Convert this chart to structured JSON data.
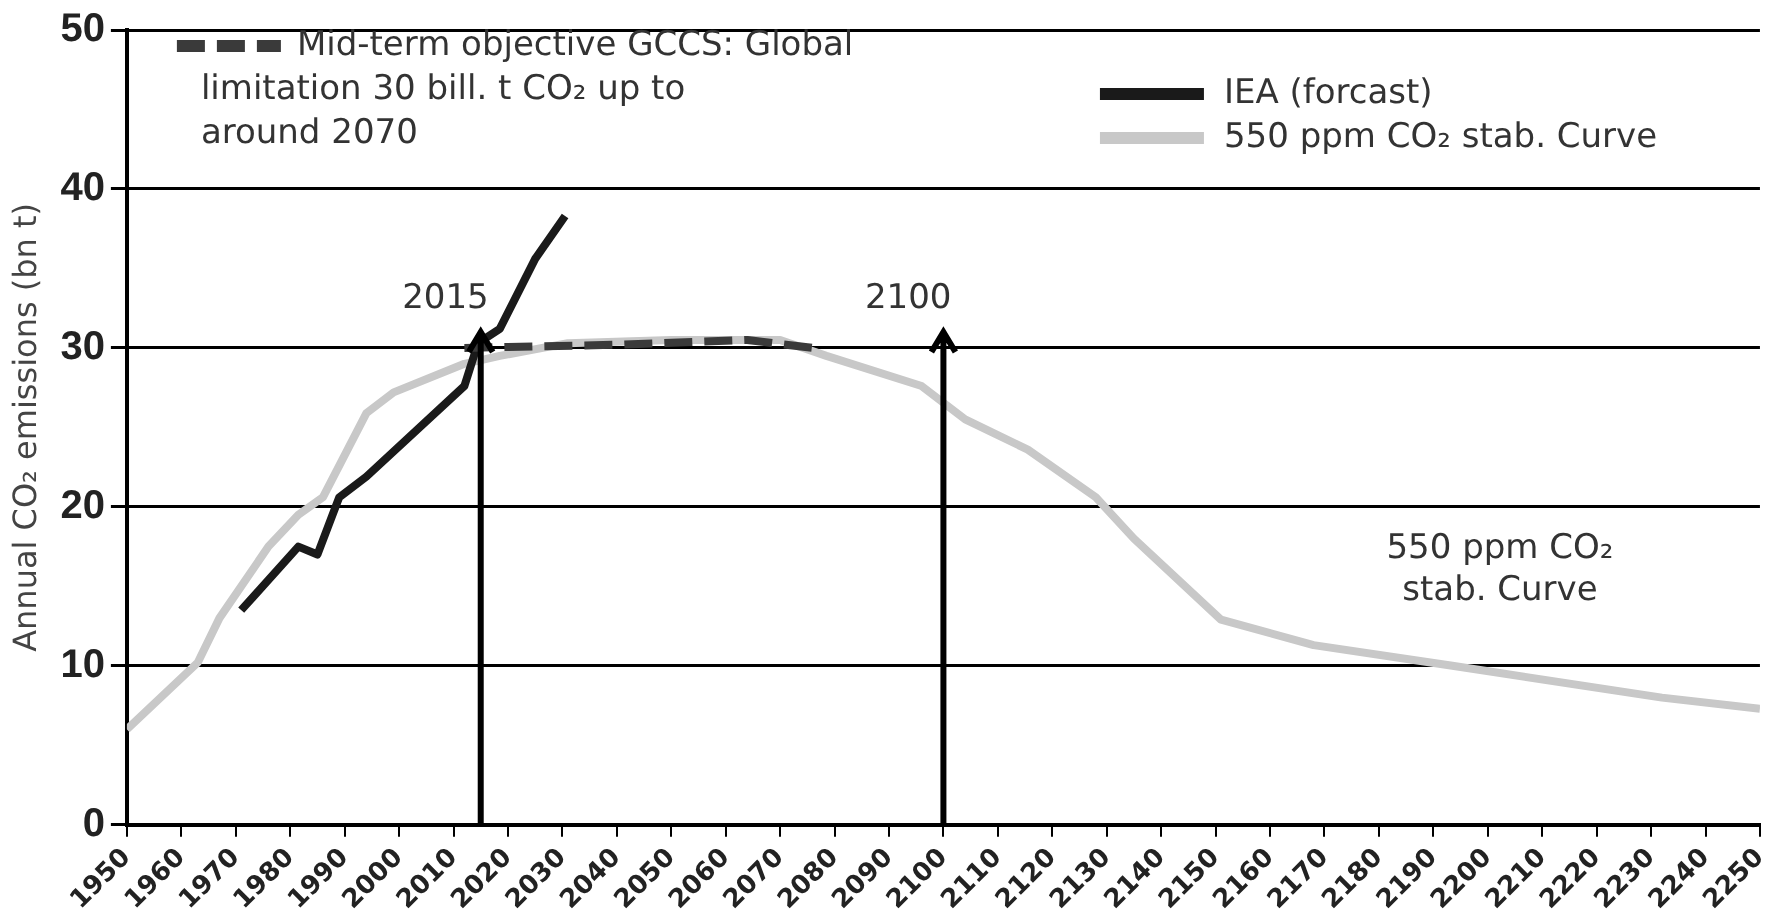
{
  "chart_data": {
    "type": "line",
    "ylabel": "Annual CO₂ emissions (bn t)",
    "xlim": [
      1950,
      2250
    ],
    "xticks": [
      1950,
      1960,
      1970,
      1980,
      1990,
      2000,
      2010,
      2020,
      2030,
      2040,
      2050,
      2060,
      2070,
      2080,
      2090,
      2100,
      2110,
      2120,
      2130,
      2140,
      2150,
      2160,
      2170,
      2180,
      2190,
      2200,
      2210,
      2220,
      2230,
      2240,
      2250
    ],
    "ylim": [
      0,
      50
    ],
    "yticks": [
      0,
      10,
      20,
      30,
      40,
      50
    ],
    "grid": "y",
    "legend": "top right",
    "marker": "none",
    "series": [
      {
        "name": "Mid-term objective GCCS: Global limitation 30 bill. t CO₂ up to around 2070",
        "color": "#3a3a3a",
        "line_style": "dashed",
        "x": [
          2012,
          2040,
          2064,
          2076
        ],
        "values": [
          30,
          30.2,
          30.5,
          30
        ]
      },
      {
        "name": "IEA (forcast)",
        "color": "#1a1a1a",
        "x": [
          1971,
          1981.5,
          1985,
          1989,
          1994,
          2012,
          2014.5,
          2018.5,
          2025,
          2030.5
        ],
        "values": [
          13.5,
          17.5,
          17,
          20.6,
          21.9,
          27.6,
          30.3,
          31.2,
          35.6,
          38.3
        ]
      },
      {
        "name": "550 ppm CO₂ stab. Curve",
        "color": "#c8c8c8",
        "x": [
          1950,
          1963,
          1967,
          1976,
          1981.5,
          1986,
          1994,
          1999,
          2012,
          2018.5,
          2031,
          2050,
          2070,
          2078.5,
          2096,
          2104,
          2115.5,
          2128,
          2135,
          2151,
          2168,
          2193.5,
          2232,
          2250
        ],
        "values": [
          6,
          10.2,
          13,
          17.5,
          19.5,
          20.6,
          25.9,
          27.2,
          29,
          29.5,
          30.3,
          30.5,
          30.5,
          29.5,
          27.6,
          25.5,
          23.6,
          20.6,
          18,
          12.9,
          11.3,
          10,
          8,
          7.3
        ]
      }
    ],
    "ref_lines": [
      {
        "axis": "x",
        "value": 2015,
        "label": "2015",
        "color": "#000000"
      },
      {
        "axis": "x",
        "value": 2100,
        "label": "2100",
        "color": "#000000"
      }
    ],
    "annotations": [
      "550 ppm CO₂ stab. Curve"
    ]
  }
}
